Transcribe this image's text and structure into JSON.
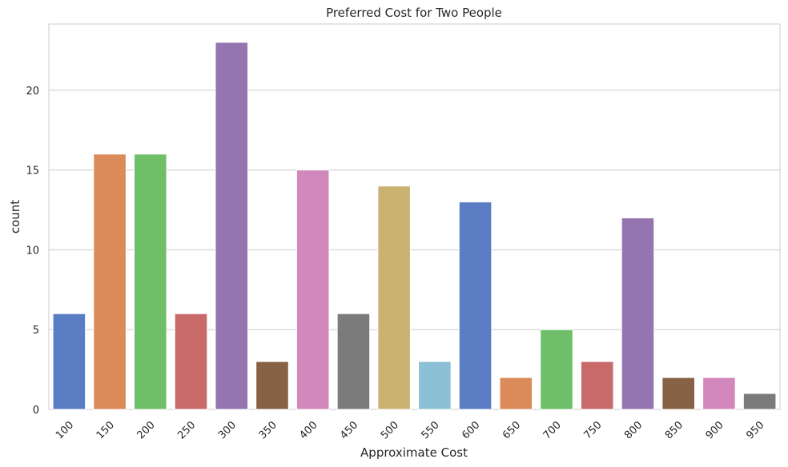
{
  "chart_data": {
    "type": "bar",
    "title": "Preferred Cost for Two People",
    "xlabel": "Approximate Cost",
    "ylabel": "count",
    "categories": [
      "100",
      "150",
      "200",
      "250",
      "300",
      "350",
      "400",
      "450",
      "500",
      "550",
      "600",
      "650",
      "700",
      "750",
      "800",
      "850",
      "900",
      "950"
    ],
    "values": [
      6,
      16,
      16,
      6,
      23,
      3,
      15,
      6,
      14,
      3,
      13,
      2,
      5,
      3,
      12,
      2,
      2,
      1
    ],
    "colors": [
      "#5a7dc4",
      "#db8a5a",
      "#6fbf6a",
      "#c96a6a",
      "#9475b0",
      "#876245",
      "#d388bd",
      "#7b7b7b",
      "#c9b272",
      "#8bc0d6",
      "#5a7dc4",
      "#db8a5a",
      "#6fbf6a",
      "#c96a6a",
      "#9475b0",
      "#876245",
      "#d388bd",
      "#7b7b7b"
    ],
    "yticks": [
      0,
      5,
      10,
      15,
      20
    ],
    "ylim": [
      0,
      24.15
    ],
    "grid": true,
    "legend": "none"
  }
}
